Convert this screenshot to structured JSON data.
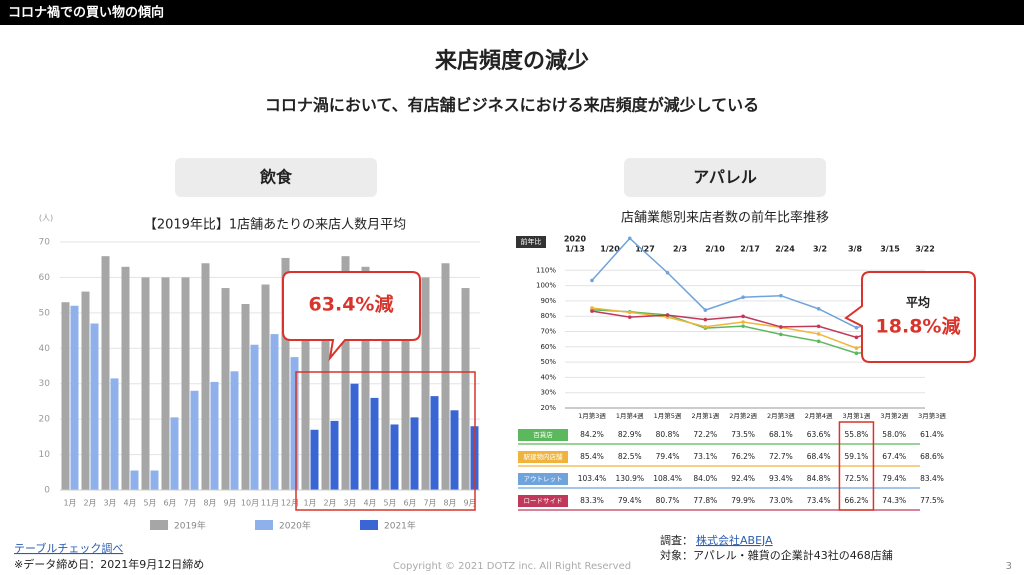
{
  "header": {
    "title": "コロナ禍での買い物の傾向"
  },
  "title": "来店頻度の減少",
  "subtitle": "コロナ渦において、有店舗ビジネスにおける来店頻度が減少している",
  "sections": [
    "飲食",
    "アパレル"
  ],
  "chart_data": [
    {
      "type": "bar",
      "title": "【2019年比】1店舗あたりの来店人数月平均",
      "y_label": "(人)",
      "categories": [
        "1月",
        "2月",
        "3月",
        "4月",
        "5月",
        "6月",
        "7月",
        "8月",
        "9月",
        "10月",
        "11月",
        "12月",
        "1月",
        "2月",
        "3月",
        "4月",
        "5月",
        "6月",
        "7月",
        "8月",
        "9月"
      ],
      "series": [
        {
          "name": "2019年",
          "color": "#a6a6a6",
          "values": [
            53,
            56,
            66,
            63,
            60,
            60,
            60,
            64,
            57,
            52.5,
            58,
            65.5,
            53,
            56,
            66,
            63,
            60,
            60,
            60,
            64,
            57
          ]
        },
        {
          "name": "2020年",
          "color": "#8fb0ea",
          "values": [
            52,
            47,
            31.5,
            5.5,
            5.5,
            20.5,
            28,
            30.5,
            33.5,
            41,
            44,
            37.5,
            null,
            null,
            null,
            null,
            null,
            null,
            null,
            null,
            null
          ]
        },
        {
          "name": "2021年",
          "color": "#3a66d4",
          "values": [
            null,
            null,
            null,
            null,
            null,
            null,
            null,
            null,
            null,
            null,
            null,
            null,
            17,
            19.5,
            30,
            26,
            18.5,
            20.5,
            26.5,
            22.5,
            18
          ]
        }
      ],
      "ylim": [
        0,
        70
      ],
      "yticks": [
        0,
        10,
        20,
        30,
        40,
        50,
        60,
        70
      ],
      "grid": true,
      "annotation": "63.4%減"
    },
    {
      "type": "line",
      "title": "店舗業態別来店者数の前年比率推移",
      "y_label": "前年比",
      "date_year": "2020",
      "dates": [
        "1/13",
        "1/20",
        "1/27",
        "2/3",
        "2/10",
        "2/17",
        "2/24",
        "3/2",
        "3/8",
        "3/15",
        "3/22"
      ],
      "categories": [
        "1月第3週",
        "1月第4週",
        "1月第5週",
        "2月第1週",
        "2月第2週",
        "2月第3週",
        "2月第4週",
        "3月第1週",
        "3月第2週",
        "3月第3週"
      ],
      "series": [
        {
          "name": "百貨店",
          "color": "#5cb85c",
          "values": [
            84.2,
            82.9,
            80.8,
            72.2,
            73.5,
            68.1,
            63.6,
            55.8,
            58.0,
            61.4
          ],
          "value_labels": [
            "84.2%",
            "82.9%",
            "80.8%",
            "72.2%",
            "73.5%",
            "68.1%",
            "63.6%",
            "55.8%",
            "58.0%",
            "61.4%"
          ]
        },
        {
          "name": "駅建物内店舗",
          "color": "#f0b43c",
          "values": [
            85.4,
            82.5,
            79.4,
            73.1,
            76.2,
            72.7,
            68.4,
            59.1,
            67.4,
            68.6
          ],
          "value_labels": [
            "85.4%",
            "82.5%",
            "79.4%",
            "73.1%",
            "76.2%",
            "72.7%",
            "68.4%",
            "59.1%",
            "67.4%",
            "68.6%"
          ]
        },
        {
          "name": "アウトレット",
          "color": "#6fa3dc",
          "values": [
            103.4,
            130.9,
            108.4,
            84.0,
            92.4,
            93.4,
            84.8,
            72.5,
            79.4,
            83.4
          ],
          "value_labels": [
            "103.4%",
            "130.9%",
            "108.4%",
            "84.0%",
            "92.4%",
            "93.4%",
            "84.8%",
            "72.5%",
            "79.4%",
            "83.4%"
          ]
        },
        {
          "name": "ロードサイド",
          "color": "#c0395a",
          "values": [
            83.3,
            79.4,
            80.7,
            77.8,
            79.9,
            73.0,
            73.4,
            66.2,
            74.3,
            77.5
          ],
          "value_labels": [
            "83.3%",
            "79.4%",
            "80.7%",
            "77.8%",
            "79.9%",
            "73.0%",
            "73.4%",
            "66.2%",
            "74.3%",
            "77.5%"
          ]
        }
      ],
      "ylim": [
        20,
        120
      ],
      "yticks": [
        {
          "value": 20,
          "label": "20%"
        },
        {
          "value": 30,
          "label": "30%"
        },
        {
          "value": 40,
          "label": "40%"
        },
        {
          "value": 50,
          "label": "50%"
        },
        {
          "value": 60,
          "label": "60%"
        },
        {
          "value": 70,
          "label": "70%"
        },
        {
          "value": 80,
          "label": "80%"
        },
        {
          "value": 90,
          "label": "90%"
        },
        {
          "value": 100,
          "label": "100%"
        },
        {
          "value": 110,
          "label": "110%"
        }
      ],
      "grid": true,
      "annotation": {
        "label": "平均",
        "text": "18.8%減"
      }
    }
  ],
  "sources": {
    "left": [
      "テーブルチェック調べ",
      "※データ締め日：2021年9月12日締め"
    ],
    "right": {
      "prefix": "調査：",
      "link": "株式会社ABEJA",
      "target": "対象：アパレル・雑貨の企業計43社の468店舗"
    }
  },
  "footer": {
    "copyright": "Copyright © 2021 DOTZ inc. All Right Reserved",
    "page": "3"
  }
}
